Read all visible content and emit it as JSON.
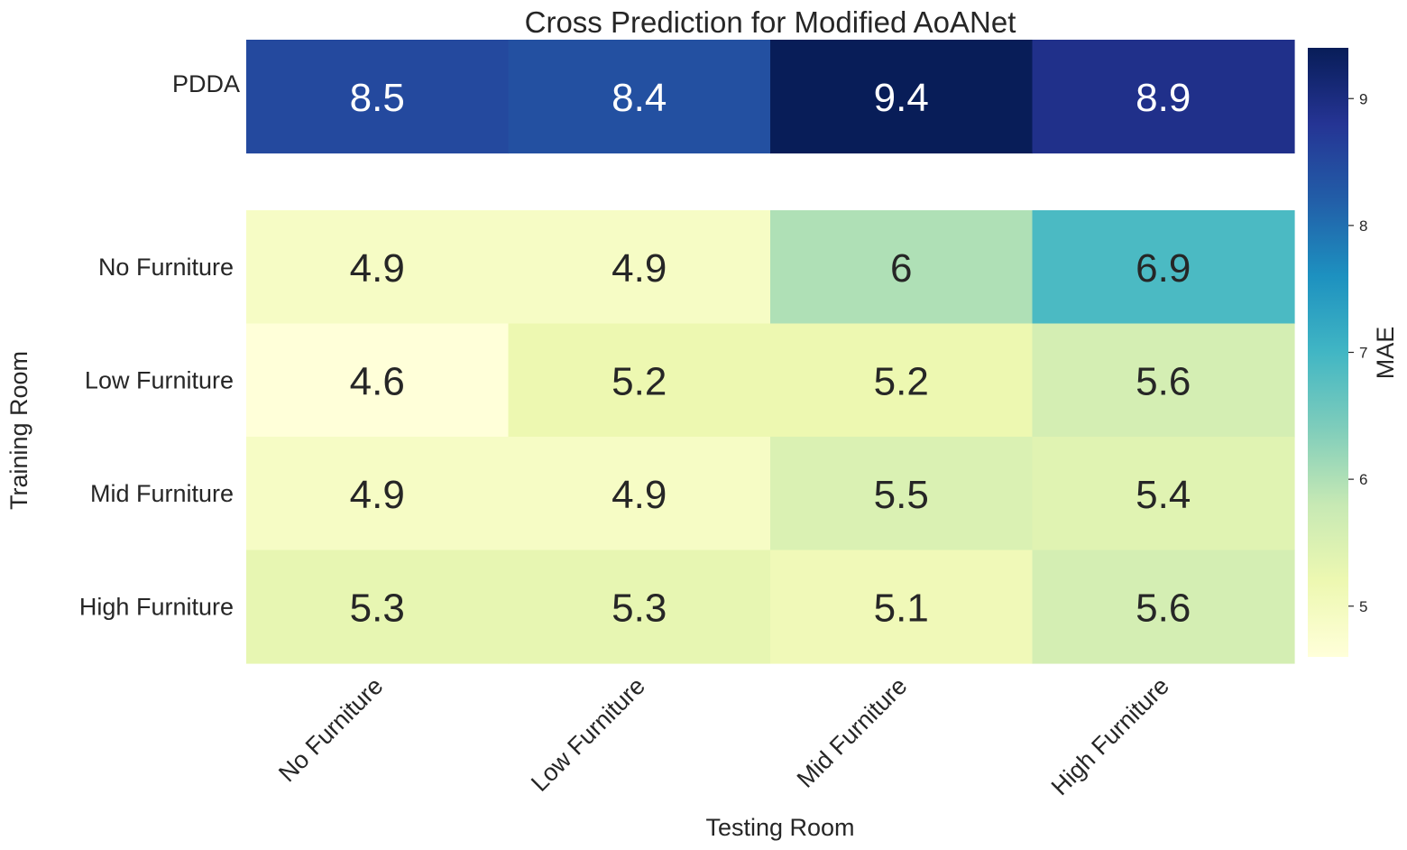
{
  "chart_data": {
    "type": "heatmap",
    "title": "Cross Prediction for Modified AoANet",
    "xlabel": "Testing Room",
    "ylabel": "Training Room",
    "colorbar_label": "MAE",
    "colorbar_ticks": [
      5,
      6,
      7,
      8,
      9
    ],
    "colorbar_range": [
      4.6,
      9.4
    ],
    "colormap": "YlGnBu",
    "colors": [
      "#ffffd9",
      "#edf8b1",
      "#c7e9b4",
      "#7fcdbb",
      "#41b6c4",
      "#1d91c0",
      "#225ea8",
      "#253494",
      "#081d58"
    ],
    "grid": false,
    "x_categories": [
      "No Furniture",
      "Low Furniture",
      "Mid Furniture",
      "High Furniture"
    ],
    "top_row": {
      "label": "PDDA",
      "values": [
        8.5,
        8.4,
        9.4,
        8.9
      ],
      "annotations": [
        "8.5",
        "8.4",
        "9.4",
        "8.9"
      ]
    },
    "rows": [
      {
        "label": "No Furniture",
        "values": [
          4.9,
          4.9,
          6.0,
          6.9
        ],
        "annotations": [
          "4.9",
          "4.9",
          "6",
          "6.9"
        ]
      },
      {
        "label": "Low Furniture",
        "values": [
          4.6,
          5.2,
          5.2,
          5.6
        ],
        "annotations": [
          "4.6",
          "5.2",
          "5.2",
          "5.6"
        ]
      },
      {
        "label": "Mid Furniture",
        "values": [
          4.9,
          4.9,
          5.5,
          5.4
        ],
        "annotations": [
          "4.9",
          "4.9",
          "5.5",
          "5.4"
        ]
      },
      {
        "label": "High Furniture",
        "values": [
          5.3,
          5.3,
          5.1,
          5.6
        ],
        "annotations": [
          "5.3",
          "5.3",
          "5.1",
          "5.6"
        ]
      }
    ]
  }
}
